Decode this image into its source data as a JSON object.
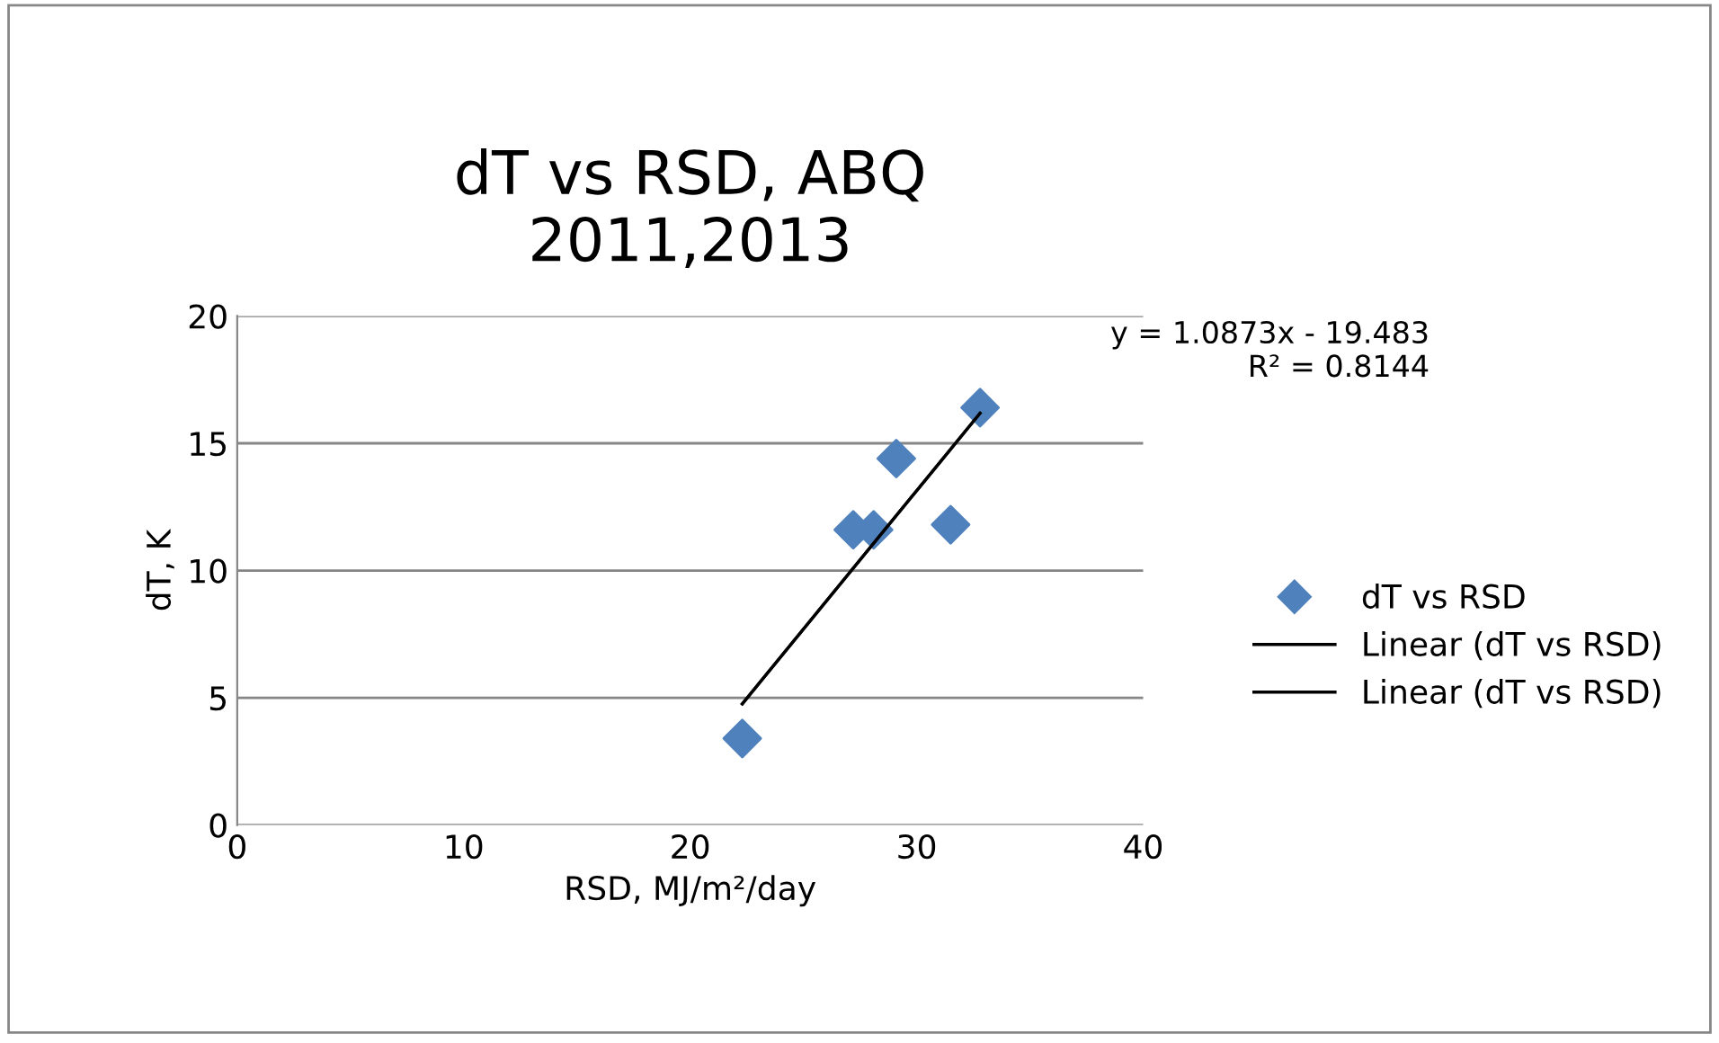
{
  "chart_data": {
    "type": "scatter",
    "title": "dT vs RSD, ABQ\n2011,2013",
    "xlabel": "RSD, MJ/m²/day",
    "ylabel": "dT, K",
    "series": [
      {
        "name": "dT vs RSD",
        "color": "#4f81bd",
        "marker": "diamond",
        "x": [
          22.3,
          27.2,
          28.1,
          29.1,
          31.5,
          32.8
        ],
        "values": [
          3.4,
          11.6,
          11.6,
          14.4,
          11.8,
          16.4
        ]
      },
      {
        "name": "Linear (dT vs RSD)",
        "type": "line",
        "color": "#000000",
        "marker": "none",
        "x": [
          22.3,
          32.8
        ],
        "values": [
          4.76,
          16.18
        ]
      },
      {
        "name": "Linear (dT vs RSD)",
        "type": "line",
        "color": "#000000",
        "marker": "none",
        "x": [
          22.3,
          32.8
        ],
        "values": [
          4.76,
          16.18
        ]
      }
    ],
    "annotations": [
      "y = 1.0873x - 19.483\nR² = 0.8144"
    ],
    "xlim": [
      0,
      40
    ],
    "xticks": [
      0,
      10,
      20,
      30,
      40
    ],
    "ylim": [
      0,
      20
    ],
    "yticks": [
      0,
      5,
      10,
      15,
      20
    ],
    "grid": "y",
    "legend": "right"
  }
}
